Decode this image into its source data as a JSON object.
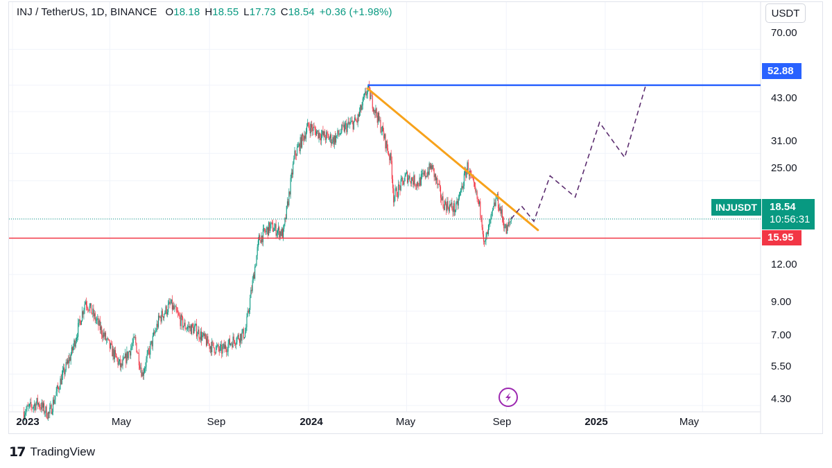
{
  "legend": {
    "symbol": "INJ / TetherUS, 1D, BINANCE",
    "o_label": "O",
    "o_value": "18.18",
    "h_label": "H",
    "h_value": "18.55",
    "l_label": "L",
    "l_value": "17.73",
    "c_label": "C",
    "c_value": "18.54",
    "change": "+0.36 (+1.98%)"
  },
  "currency_button": "USDT",
  "y_axis": {
    "ticks": [
      "70.00",
      "43.00",
      "31.00",
      "25.00",
      "12.00",
      "9.00",
      "7.00",
      "5.50",
      "4.30"
    ]
  },
  "x_axis": {
    "ticks": [
      "2023",
      "May",
      "Sep",
      "2024",
      "May",
      "Sep",
      "2025",
      "May"
    ]
  },
  "tags": {
    "resistance": "52.88",
    "ticker": "INJUSDT",
    "last_price": "18.54",
    "countdown": "10:56:31",
    "support": "15.95"
  },
  "footer": {
    "logo_mark": "17",
    "brand": "TradingView"
  },
  "colors": {
    "up": "#089981",
    "down": "#f23645",
    "resistance": "#2962ff",
    "support": "#f23645",
    "trendline": "#f7a21b",
    "projection": "#5b2c6f",
    "event_icon": "#9c27b0"
  },
  "chart_data": {
    "type": "candlestick",
    "title": "INJ / TetherUS, 1D, BINANCE",
    "y_scale": "log",
    "ylim": [
      4.0,
      82.0
    ],
    "series": [
      {
        "name": "INJUSDT",
        "points": [
          [
            "2023-01-15",
            4.1
          ],
          [
            "2023-02-01",
            4.4
          ],
          [
            "2023-02-15",
            4.0
          ],
          [
            "2023-03-01",
            5.2
          ],
          [
            "2023-03-15",
            6.5
          ],
          [
            "2023-04-01",
            9.8
          ],
          [
            "2023-04-15",
            8.3
          ],
          [
            "2023-05-01",
            6.8
          ],
          [
            "2023-05-15",
            5.8
          ],
          [
            "2023-06-01",
            7.2
          ],
          [
            "2023-06-10",
            5.5
          ],
          [
            "2023-07-01",
            8.5
          ],
          [
            "2023-07-15",
            9.5
          ],
          [
            "2023-08-01",
            8.0
          ],
          [
            "2023-08-15",
            7.8
          ],
          [
            "2023-09-01",
            6.9
          ],
          [
            "2023-09-15",
            6.6
          ],
          [
            "2023-10-01",
            7.2
          ],
          [
            "2023-10-15",
            7.6
          ],
          [
            "2023-11-01",
            15.8
          ],
          [
            "2023-11-15",
            17.5
          ],
          [
            "2023-12-01",
            16.5
          ],
          [
            "2023-12-15",
            30.5
          ],
          [
            "2024-01-01",
            38.5
          ],
          [
            "2024-01-15",
            36.0
          ],
          [
            "2024-02-01",
            34.5
          ],
          [
            "2024-02-15",
            38.0
          ],
          [
            "2024-03-01",
            40.0
          ],
          [
            "2024-03-14",
            51.5
          ],
          [
            "2024-04-01",
            37.0
          ],
          [
            "2024-04-12",
            29.0
          ],
          [
            "2024-04-15",
            22.0
          ],
          [
            "2024-05-01",
            26.0
          ],
          [
            "2024-05-15",
            24.5
          ],
          [
            "2024-06-01",
            28.0
          ],
          [
            "2024-06-15",
            21.0
          ],
          [
            "2024-07-01",
            20.0
          ],
          [
            "2024-07-15",
            28.0
          ],
          [
            "2024-08-01",
            19.5
          ],
          [
            "2024-08-05",
            15.0
          ],
          [
            "2024-08-20",
            22.0
          ],
          [
            "2024-09-01",
            16.8
          ],
          [
            "2024-09-07",
            18.54
          ]
        ]
      },
      {
        "name": "projection",
        "points": [
          [
            "2024-09-07",
            18.54
          ],
          [
            "2024-09-20",
            20.5
          ],
          [
            "2024-10-05",
            18.2
          ],
          [
            "2024-10-25",
            26.0
          ],
          [
            "2024-11-25",
            22.0
          ],
          [
            "2024-12-25",
            39.5
          ],
          [
            "2025-01-25",
            30.0
          ],
          [
            "2025-02-20",
            52.88
          ]
        ]
      }
    ],
    "levels": [
      {
        "price": 52.88,
        "from": "2024-03-14"
      },
      {
        "price": 15.95
      }
    ],
    "trendline": {
      "from": [
        "2024-03-14",
        51.5
      ],
      "to": [
        "2024-10-10",
        17.0
      ]
    },
    "last_price": 18.54
  }
}
